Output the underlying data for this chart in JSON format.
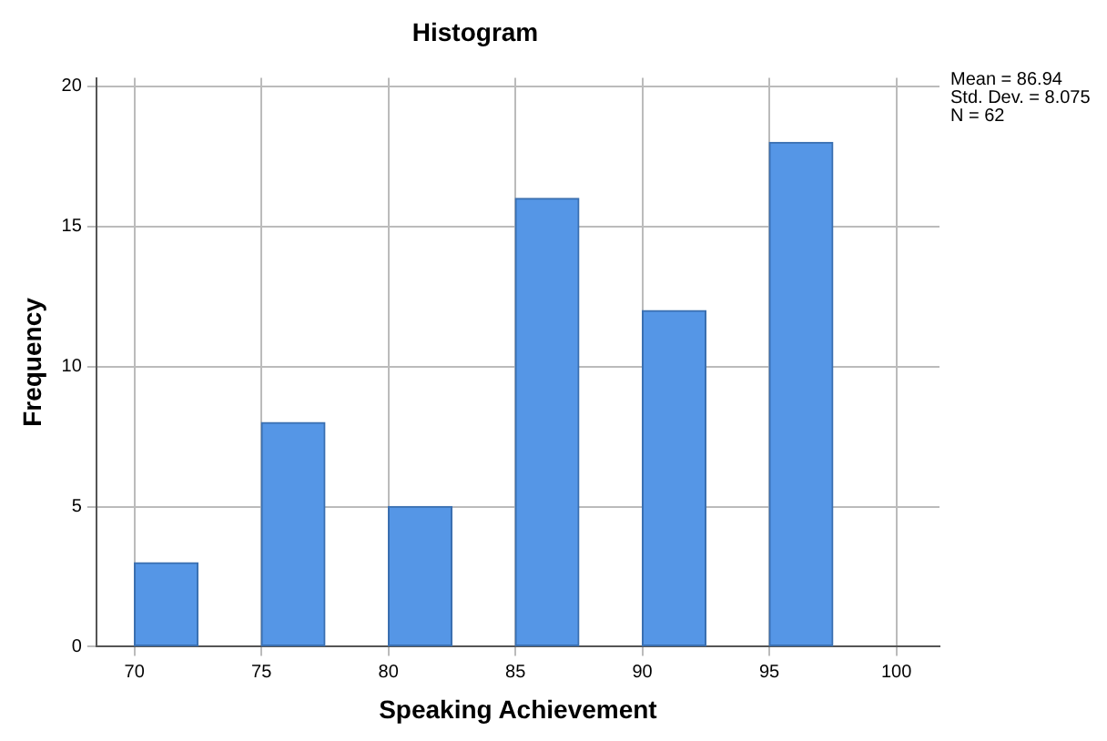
{
  "chart_data": {
    "type": "histogram",
    "title": "Histogram",
    "xlabel": "Speaking Achievement",
    "ylabel": "Frequency",
    "bins": [
      70,
      72.5,
      75,
      77.5,
      80,
      82.5,
      85,
      87.5,
      90,
      92.5,
      95,
      97.5
    ],
    "values": [
      3,
      0,
      8,
      0,
      5,
      0,
      16,
      0,
      12,
      0,
      18
    ],
    "color": "#5596e6",
    "xlim": [
      68.5,
      101.7
    ],
    "xticks": [
      70,
      75,
      80,
      85,
      90,
      95,
      100
    ],
    "ylim": [
      0,
      20.3
    ],
    "yticks": [
      0,
      5,
      10,
      15,
      20
    ],
    "grid": true,
    "annotations": [
      "Mean = 86.94",
      "Std. Dev. = 8.075",
      "N = 62"
    ]
  }
}
